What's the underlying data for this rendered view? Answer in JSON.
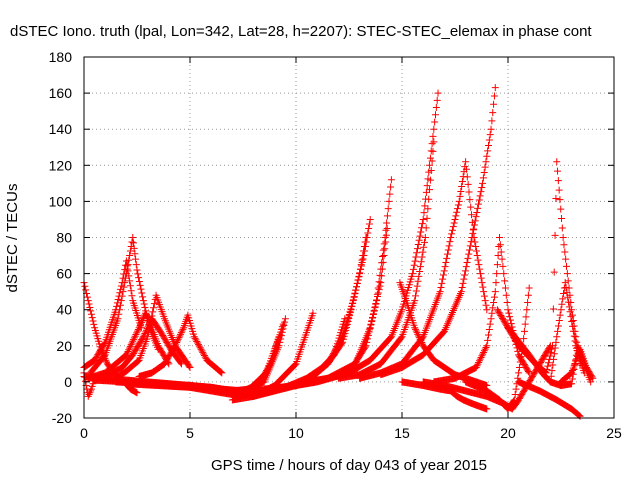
{
  "chart_data": {
    "type": "scatter",
    "title": "dSTEC Iono. truth (lpal, Lon=342, Lat=28, h=2207): STEC-STEC_elemax in phase cont",
    "xlabel": "GPS time / hours of day 043 of year 2015",
    "ylabel": "dSTEC  / TECUs",
    "xlim": [
      0,
      25
    ],
    "ylim": [
      -20,
      180
    ],
    "xticks": [
      0,
      5,
      10,
      15,
      20,
      25
    ],
    "yticks": [
      -20,
      0,
      20,
      40,
      60,
      80,
      100,
      120,
      140,
      160,
      180
    ],
    "grid": true,
    "marker": "plus",
    "color": "#ff0000",
    "series": [
      {
        "x": [
          0.0,
          0.2,
          0.5,
          0.8,
          1.1,
          1.5,
          1.9,
          2.2,
          2.5
        ],
        "values": [
          55,
          45,
          30,
          18,
          10,
          4,
          0,
          -4,
          -6
        ]
      },
      {
        "x": [
          0.0,
          0.1,
          0.2,
          0.35,
          0.5
        ],
        "values": [
          5,
          -2,
          -8,
          -4,
          2
        ]
      },
      {
        "x": [
          0.0,
          0.5,
          1.0,
          1.5,
          1.8,
          2.0,
          2.3,
          2.7
        ],
        "values": [
          8,
          12,
          22,
          40,
          55,
          67,
          45,
          30
        ]
      },
      {
        "x": [
          0.3,
          1.0,
          1.6,
          2.0,
          2.3,
          2.5,
          2.8,
          3.1,
          3.5
        ],
        "values": [
          5,
          15,
          35,
          60,
          80,
          62,
          45,
          30,
          18
        ]
      },
      {
        "x": [
          0.2,
          1.0,
          2.0,
          2.6,
          2.9,
          3.2,
          3.5,
          4.0
        ],
        "values": [
          2,
          5,
          15,
          30,
          38,
          30,
          20,
          10
        ]
      },
      {
        "x": [
          1.0,
          1.8,
          2.3,
          2.8,
          3.2,
          3.6,
          4.1,
          4.6
        ],
        "values": [
          3,
          8,
          15,
          25,
          35,
          28,
          18,
          10
        ]
      },
      {
        "x": [
          1.5,
          2.0,
          2.6,
          3.0,
          3.4,
          3.8,
          4.3,
          5.0
        ],
        "values": [
          2,
          6,
          12,
          25,
          48,
          35,
          20,
          8
        ]
      },
      {
        "x": [
          2.6,
          3.2,
          3.8,
          4.3,
          4.7,
          4.9,
          5.2,
          5.8,
          6.5
        ],
        "values": [
          3,
          5,
          10,
          20,
          30,
          37,
          25,
          12,
          5
        ]
      },
      {
        "x": [
          0.0,
          1.0,
          2.0,
          3.0,
          4.0,
          5.0,
          6.0,
          7.0
        ],
        "values": [
          3,
          2,
          1,
          0,
          -1,
          -2,
          -3,
          -5
        ]
      },
      {
        "x": [
          0.5,
          2.0,
          3.5,
          5.0,
          6.5,
          7.5,
          8.5,
          9.2,
          9.5
        ],
        "values": [
          1,
          0,
          -1,
          -2,
          -4,
          -5,
          0,
          20,
          35
        ]
      },
      {
        "x": [
          1.5,
          3.0,
          4.5,
          6.0,
          7.0,
          7.8,
          8.6,
          9.2
        ],
        "values": [
          0,
          -1,
          -2,
          -3,
          -5,
          -4,
          5,
          25
        ]
      },
      {
        "x": [
          2.0,
          3.5,
          5.0,
          6.5,
          7.5,
          8.2,
          8.8,
          9.4
        ],
        "values": [
          -1,
          -2,
          -3,
          -6,
          -8,
          -2,
          10,
          32
        ]
      },
      {
        "x": [
          4.0,
          5.5,
          7.0,
          8.0,
          9.0,
          10.0,
          10.8
        ],
        "values": [
          -2,
          -3,
          -6,
          -8,
          -2,
          10,
          38
        ]
      },
      {
        "x": [
          7.0,
          8.0,
          9.0,
          10.0,
          11.0,
          11.8,
          12.3
        ],
        "values": [
          -10,
          -8,
          -5,
          -2,
          5,
          15,
          35
        ]
      },
      {
        "x": [
          7.2,
          8.5,
          9.5,
          10.5,
          11.5,
          12.2,
          12.6,
          13.0,
          13.3
        ],
        "values": [
          -8,
          -6,
          -3,
          2,
          10,
          22,
          40,
          60,
          80
        ]
      },
      {
        "x": [
          7.5,
          9.0,
          10.5,
          11.5,
          12.2,
          12.7,
          13.2,
          13.5
        ],
        "values": [
          -6,
          -4,
          0,
          10,
          25,
          45,
          70,
          90
        ]
      },
      {
        "x": [
          8.0,
          9.5,
          11.0,
          12.5,
          13.3,
          13.8,
          14.2,
          14.5
        ],
        "values": [
          -5,
          -3,
          0,
          5,
          20,
          45,
          80,
          112
        ]
      },
      {
        "x": [
          8.5,
          10.0,
          11.5,
          12.8,
          13.5,
          14.0,
          14.3
        ],
        "values": [
          -4,
          -2,
          2,
          10,
          30,
          55,
          85
        ]
      },
      {
        "x": [
          10.5,
          11.5,
          12.5,
          13.5,
          14.5,
          15.0,
          15.5,
          16.0,
          16.3,
          16.7
        ],
        "values": [
          0,
          2,
          5,
          12,
          25,
          40,
          60,
          90,
          120,
          160
        ]
      },
      {
        "x": [
          12.0,
          13.0,
          14.0,
          15.0,
          15.6,
          16.1,
          16.5
        ],
        "values": [
          2,
          4,
          10,
          25,
          45,
          80,
          133
        ]
      },
      {
        "x": [
          14.9,
          15.2,
          15.6,
          16.0,
          16.5,
          17.0,
          17.5,
          18.0,
          18.5,
          19.0
        ],
        "values": [
          55,
          45,
          30,
          20,
          12,
          8,
          4,
          2,
          0,
          -2
        ]
      },
      {
        "x": [
          15.0,
          16.0,
          16.8,
          17.3,
          17.6,
          17.9,
          18.3,
          19.0
        ],
        "values": [
          0,
          -2,
          -4,
          -5,
          -8,
          -10,
          -12,
          -15
        ]
      },
      {
        "x": [
          13.0,
          14.0,
          15.0,
          16.0,
          16.8,
          17.3,
          17.7,
          18.0,
          18.4,
          19.0
        ],
        "values": [
          2,
          5,
          10,
          25,
          50,
          80,
          100,
          122,
          80,
          40
        ]
      },
      {
        "x": [
          14.0,
          15.0,
          16.0,
          17.0,
          17.8,
          18.3,
          18.8,
          19.2,
          19.4
        ],
        "values": [
          4,
          8,
          15,
          28,
          50,
          80,
          110,
          140,
          163
        ]
      },
      {
        "x": [
          16.5,
          17.5,
          18.5,
          19.0,
          19.4,
          19.6,
          20.0,
          20.5,
          21.0
        ],
        "values": [
          0,
          2,
          8,
          20,
          50,
          80,
          40,
          15,
          5
        ]
      },
      {
        "x": [
          16.0,
          17.0,
          18.0,
          19.0,
          19.8,
          20.2,
          20.5,
          21.0,
          21.5,
          22.0
        ],
        "values": [
          0,
          -2,
          -5,
          -8,
          -12,
          -15,
          -10,
          0,
          10,
          20
        ]
      },
      {
        "x": [
          18.0,
          19.0,
          19.6,
          20.0,
          20.3,
          20.7,
          21.0
        ],
        "values": [
          0,
          -5,
          -10,
          -15,
          -10,
          20,
          52
        ]
      },
      {
        "x": [
          19.5,
          20.5,
          21.3,
          21.8,
          22.1,
          22.3,
          22.6,
          23.0,
          23.4
        ],
        "values": [
          40,
          20,
          10,
          5,
          20,
          122,
          80,
          40,
          10
        ]
      },
      {
        "x": [
          20.0,
          21.0,
          21.6,
          22.0,
          22.3,
          22.7,
          23.2,
          23.6
        ],
        "values": [
          30,
          15,
          5,
          0,
          25,
          55,
          20,
          5
        ]
      },
      {
        "x": [
          20.5,
          21.5,
          22.3,
          23.0,
          23.4
        ],
        "values": [
          0,
          -5,
          -10,
          -15,
          -19
        ]
      },
      {
        "x": [
          22.0,
          22.5,
          23.0,
          23.3,
          23.6,
          23.9
        ],
        "values": [
          0,
          -2,
          -1,
          20,
          10,
          0
        ]
      },
      {
        "x": [
          22.5,
          23.0,
          23.4,
          23.7,
          24.0
        ],
        "values": [
          0,
          5,
          18,
          8,
          2
        ]
      }
    ]
  }
}
